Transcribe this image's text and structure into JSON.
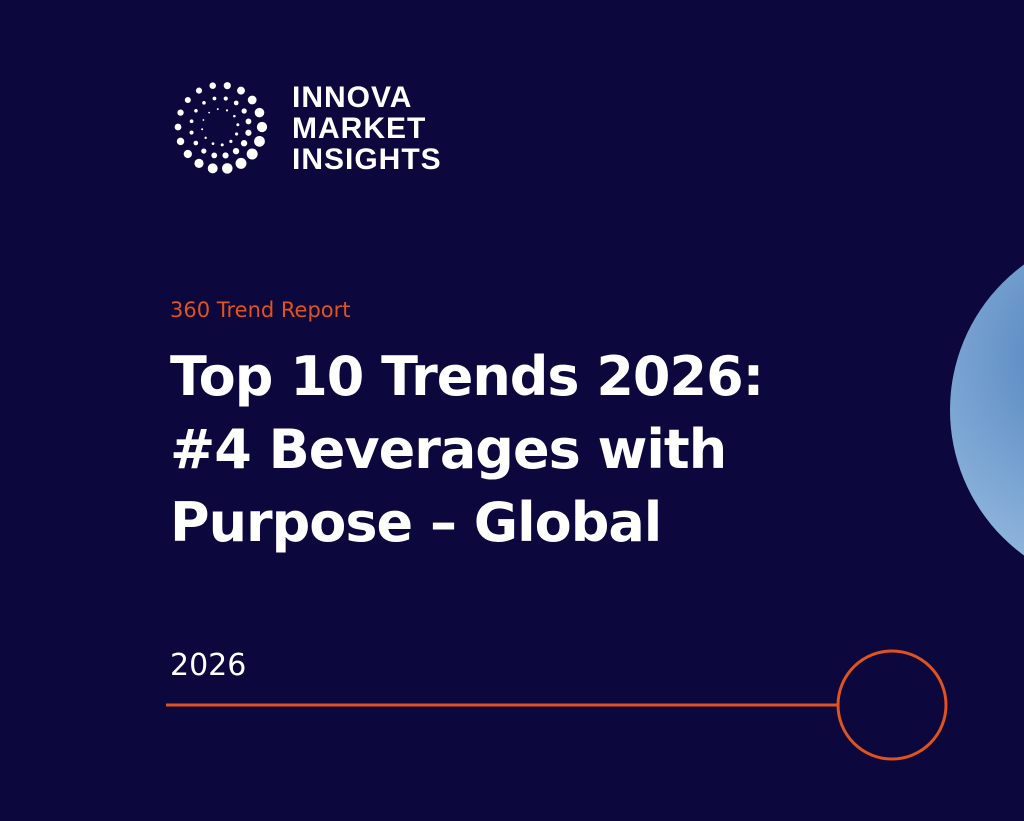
{
  "logo": {
    "lines": [
      "INNOVA",
      "MARKET",
      "INSIGHTS"
    ]
  },
  "kicker": "360 Trend Report",
  "title": {
    "lines": [
      "Top 10 Trends 2026:",
      "#4 Beverages with",
      "Purpose – Global"
    ]
  },
  "date": "2026"
}
